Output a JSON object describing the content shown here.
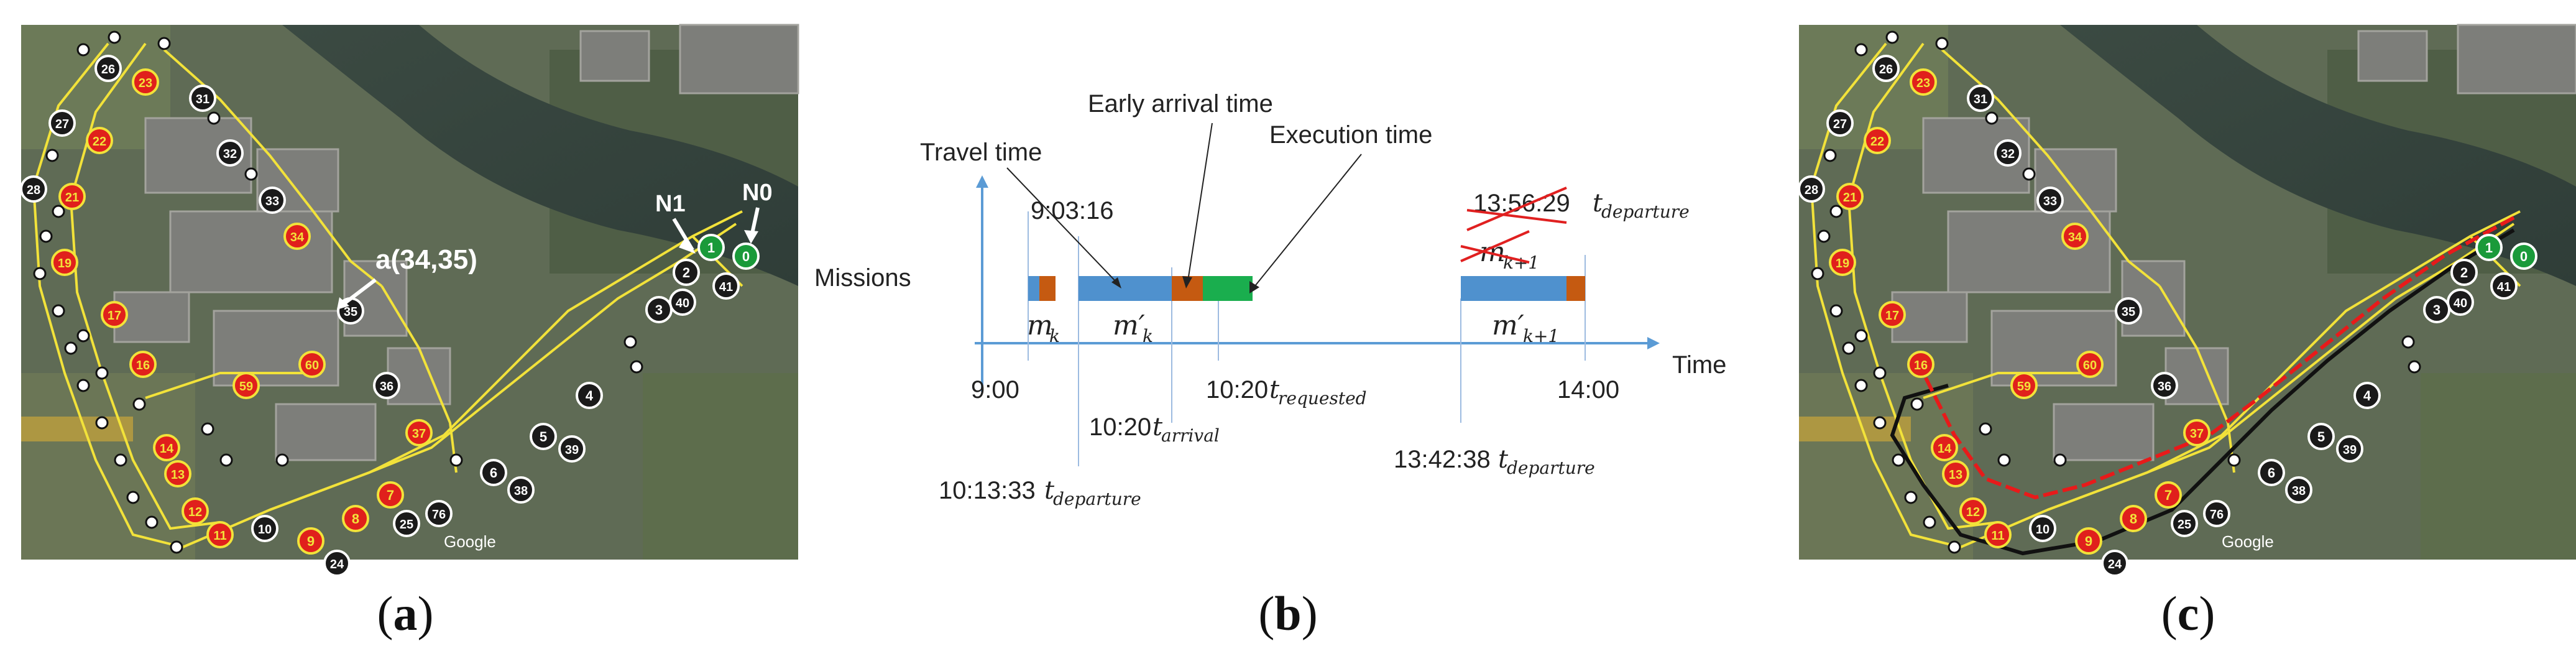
{
  "panel_a": {
    "nodes": [
      {
        "id": "26",
        "red": false
      },
      {
        "id": "23",
        "red": true
      },
      {
        "id": "31",
        "red": false
      },
      {
        "id": "27",
        "red": false
      },
      {
        "id": "22",
        "red": true
      },
      {
        "id": "32",
        "red": false
      },
      {
        "id": "28",
        "red": false
      },
      {
        "id": "21",
        "red": true
      },
      {
        "id": "33",
        "red": false
      },
      {
        "id": "34",
        "red": true
      },
      {
        "id": "19",
        "red": true
      },
      {
        "id": "17",
        "red": true
      },
      {
        "id": "35",
        "red": false
      },
      {
        "id": "16",
        "red": true
      },
      {
        "id": "60",
        "red": true
      },
      {
        "id": "59",
        "red": true
      },
      {
        "id": "36",
        "red": false
      },
      {
        "id": "14",
        "red": true
      },
      {
        "id": "13",
        "red": true
      },
      {
        "id": "12",
        "red": true
      },
      {
        "id": "11",
        "red": true
      },
      {
        "id": "37",
        "red": true
      },
      {
        "id": "7",
        "red": true
      },
      {
        "id": "8",
        "red": true
      },
      {
        "id": "9",
        "red": true
      },
      {
        "id": "10",
        "red": false
      },
      {
        "id": "24",
        "red": false
      },
      {
        "id": "25",
        "red": false
      },
      {
        "id": "76",
        "red": false
      },
      {
        "id": "6",
        "red": false
      },
      {
        "id": "38",
        "red": false
      },
      {
        "id": "5",
        "red": false
      },
      {
        "id": "39",
        "red": false
      },
      {
        "id": "4",
        "red": false
      },
      {
        "id": "40",
        "red": false
      },
      {
        "id": "3",
        "red": false
      },
      {
        "id": "41",
        "red": false
      },
      {
        "id": "2",
        "red": false
      },
      {
        "id": "1",
        "red": false
      },
      {
        "id": "0",
        "red": false
      }
    ],
    "labels": {
      "n0": "N0",
      "n1": "N1",
      "arc": "a(34,35)",
      "google": "Google"
    }
  },
  "panel_b": {
    "y_axis_label": "Missions",
    "x_axis_label": "Time",
    "ticks": [
      "9:00",
      "10:20",
      "14:00"
    ],
    "annotations": {
      "travel_time": "Travel time",
      "early_arrival_time": "Early arrival time",
      "execution_time": "Execution time",
      "time_903": "9:03:16",
      "time_1356": "13:56:29",
      "time_1013": "10:13:33",
      "time_1020_arrival": "10:20",
      "time_1342": "13:42:38",
      "t_departure": "t",
      "t_departure_sub": "departure",
      "t_arrival_sub": "arrival",
      "t_requested_sub": "requested"
    },
    "missions": [
      "m",
      "m′",
      "m",
      "m′"
    ],
    "mission_subs": [
      "k",
      "k",
      "k+1",
      "k+1"
    ],
    "colors": {
      "travel": "#4f91ce",
      "early": "#c55a11",
      "execution": "#1aae4e",
      "axis": "#5b9bd5",
      "strike": "#e02020"
    }
  },
  "panel_c": {
    "nodes": [
      {
        "id": "26",
        "red": false
      },
      {
        "id": "23",
        "red": true
      },
      {
        "id": "31",
        "red": false
      },
      {
        "id": "27",
        "red": false
      },
      {
        "id": "22",
        "red": true
      },
      {
        "id": "32",
        "red": false
      },
      {
        "id": "28",
        "red": false
      },
      {
        "id": "21",
        "red": true
      },
      {
        "id": "33",
        "red": false
      },
      {
        "id": "34",
        "red": true
      },
      {
        "id": "19",
        "red": true
      },
      {
        "id": "17",
        "red": true
      },
      {
        "id": "35",
        "red": false
      },
      {
        "id": "16",
        "red": true
      },
      {
        "id": "60",
        "red": true
      },
      {
        "id": "59",
        "red": true
      },
      {
        "id": "36",
        "red": false
      },
      {
        "id": "14",
        "red": true
      },
      {
        "id": "13",
        "red": true
      },
      {
        "id": "12",
        "red": true
      },
      {
        "id": "11",
        "red": true
      },
      {
        "id": "37",
        "red": true
      },
      {
        "id": "7",
        "red": true
      },
      {
        "id": "8",
        "red": true
      },
      {
        "id": "9",
        "red": true
      },
      {
        "id": "10",
        "red": false
      },
      {
        "id": "24",
        "red": false
      },
      {
        "id": "25",
        "red": false
      },
      {
        "id": "76",
        "red": false
      },
      {
        "id": "6",
        "red": false
      },
      {
        "id": "38",
        "red": false
      },
      {
        "id": "5",
        "red": false
      },
      {
        "id": "39",
        "red": false
      },
      {
        "id": "4",
        "red": false
      },
      {
        "id": "40",
        "red": false
      },
      {
        "id": "3",
        "red": false
      },
      {
        "id": "41",
        "red": false
      },
      {
        "id": "2",
        "red": false
      },
      {
        "id": "1",
        "red": false
      },
      {
        "id": "0",
        "red": false
      }
    ],
    "labels": {
      "google": "Google"
    }
  },
  "captions": {
    "a": "a",
    "b": "b",
    "c": "c"
  }
}
